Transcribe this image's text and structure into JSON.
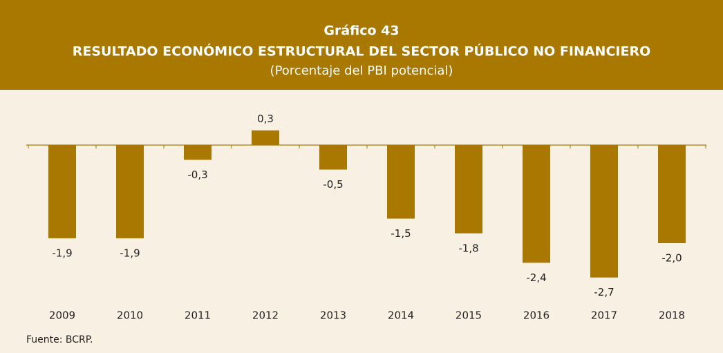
{
  "chart_data": {
    "type": "bar",
    "chart_number": "Gráfico 43",
    "title": "RESULTADO ECONÓMICO ESTRUCTURAL DEL SECTOR PÚBLICO NO FINANCIERO",
    "subtitle": "(Porcentaje del PBI potencial)",
    "source": "Fuente: BCRP.",
    "categories": [
      "2009",
      "2010",
      "2011",
      "2012",
      "2013",
      "2014",
      "2015",
      "2016",
      "2017",
      "2018"
    ],
    "values": [
      -1.9,
      -1.9,
      -0.3,
      0.3,
      -0.5,
      -1.5,
      -1.8,
      -2.4,
      -2.7,
      -2.0
    ],
    "value_labels": [
      "-1,9",
      "-1,9",
      "-0,3",
      "0,3",
      "-0,5",
      "-1,5",
      "-1,8",
      "-2,4",
      "-2,7",
      "-2,0"
    ],
    "color": "#a87800"
  }
}
